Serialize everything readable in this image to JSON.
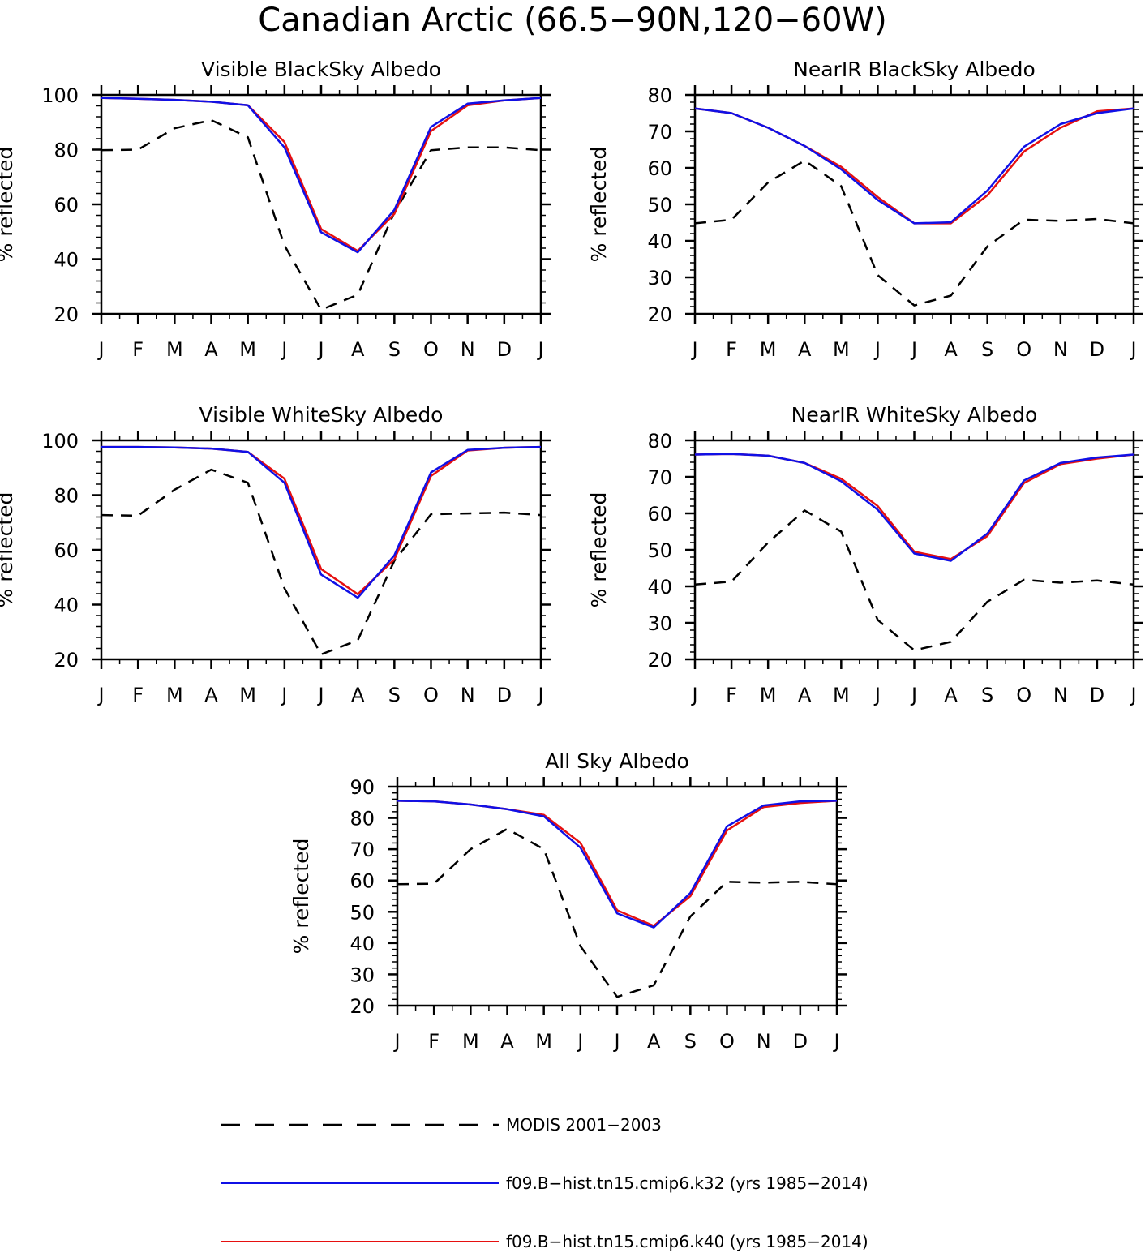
{
  "figure": {
    "title": "Canadian Arctic (66.5−90N,120−60W)"
  },
  "colors": {
    "modis": "#000000",
    "k32": "#1010e6",
    "k40": "#e61010"
  },
  "legend": [
    {
      "key": "modis",
      "label": "MODIS 2001−2003",
      "style": "dashed"
    },
    {
      "key": "k32",
      "label": "f09.B−hist.tn15.cmip6.k32 (yrs 1985−2014)",
      "style": "solid"
    },
    {
      "key": "k40",
      "label": "f09.B−hist.tn15.cmip6.k40 (yrs 1985−2014)",
      "style": "solid"
    }
  ],
  "chart_data": [
    {
      "type": "line",
      "title": "Visible BlackSky Albedo",
      "ylabel": "% reflected",
      "categories": [
        "J",
        "F",
        "M",
        "A",
        "M",
        "J",
        "J",
        "A",
        "S",
        "O",
        "N",
        "D",
        "J"
      ],
      "ylim": [
        20,
        100
      ],
      "yticks": [
        20,
        40,
        60,
        80,
        100
      ],
      "series": [
        {
          "name": "MODIS 2001−2003",
          "key": "modis",
          "values": [
            79.8,
            80,
            87.8,
            90.8,
            84.5,
            45,
            21.5,
            27,
            57,
            79.8,
            80.8,
            80.8,
            79.8
          ]
        },
        {
          "name": "f09.B−hist.tn15.cmip6.k40 (yrs 1985−2014)",
          "key": "k40",
          "values": [
            98.9,
            98.6,
            98.2,
            97.5,
            96.2,
            82.8,
            51,
            43,
            56.5,
            86.8,
            96.2,
            98,
            98.9
          ]
        },
        {
          "name": "f09.B−hist.tn15.cmip6.k32 (yrs 1985−2014)",
          "key": "k32",
          "values": [
            98.9,
            98.6,
            98.2,
            97.5,
            96.2,
            80.8,
            49.8,
            42.5,
            58,
            88.3,
            96.8,
            98,
            98.9
          ]
        }
      ]
    },
    {
      "type": "line",
      "title": "NearIR BlackSky Albedo",
      "ylabel": "% reflected",
      "categories": [
        "J",
        "F",
        "M",
        "A",
        "M",
        "J",
        "J",
        "A",
        "S",
        "O",
        "N",
        "D",
        "J"
      ],
      "ylim": [
        20,
        80
      ],
      "yticks": [
        20,
        30,
        40,
        50,
        60,
        70,
        80
      ],
      "series": [
        {
          "name": "MODIS 2001−2003",
          "key": "modis",
          "values": [
            44.8,
            45.8,
            56,
            62,
            55,
            30.6,
            22.3,
            25,
            38.5,
            45.8,
            45.5,
            46,
            44.8
          ]
        },
        {
          "name": "f09.B−hist.tn15.cmip6.k40 (yrs 1985−2014)",
          "key": "k40",
          "values": [
            76.3,
            75,
            71,
            66,
            60.3,
            52,
            44.8,
            44.8,
            52.5,
            64.5,
            71,
            75.5,
            76.3
          ]
        },
        {
          "name": "f09.B−hist.tn15.cmip6.k32 (yrs 1985−2014)",
          "key": "k32",
          "values": [
            76.3,
            75,
            71,
            66,
            59.6,
            51.2,
            44.8,
            45.1,
            53.8,
            65.8,
            72,
            75,
            76.3
          ]
        }
      ]
    },
    {
      "type": "line",
      "title": "Visible WhiteSky Albedo",
      "ylabel": "% reflected",
      "categories": [
        "J",
        "F",
        "M",
        "A",
        "M",
        "J",
        "J",
        "A",
        "S",
        "O",
        "N",
        "D",
        "J"
      ],
      "ylim": [
        20,
        100
      ],
      "yticks": [
        20,
        40,
        60,
        80,
        100
      ],
      "series": [
        {
          "name": "MODIS 2001−2003",
          "key": "modis",
          "values": [
            72.7,
            72.5,
            82,
            89.3,
            84.5,
            46,
            21.8,
            27,
            56,
            73,
            73.3,
            73.6,
            72.7
          ]
        },
        {
          "name": "f09.B−hist.tn15.cmip6.k40 (yrs 1985−2014)",
          "key": "k40",
          "values": [
            97.6,
            97.6,
            97.4,
            97,
            95.8,
            86,
            53,
            43.8,
            56.5,
            87,
            96.3,
            97.3,
            97.6
          ]
        },
        {
          "name": "f09.B−hist.tn15.cmip6.k32 (yrs 1985−2014)",
          "key": "k32",
          "values": [
            97.6,
            97.6,
            97.4,
            97,
            95.8,
            84.5,
            51,
            42.5,
            58,
            88.3,
            96.5,
            97.3,
            97.6
          ]
        }
      ]
    },
    {
      "type": "line",
      "title": "NearIR WhiteSky Albedo",
      "ylabel": "% reflected",
      "categories": [
        "J",
        "F",
        "M",
        "A",
        "M",
        "J",
        "J",
        "A",
        "S",
        "O",
        "N",
        "D",
        "J"
      ],
      "ylim": [
        20,
        80
      ],
      "yticks": [
        20,
        30,
        40,
        50,
        60,
        70,
        80
      ],
      "series": [
        {
          "name": "MODIS 2001−2003",
          "key": "modis",
          "values": [
            40.5,
            41.3,
            52,
            60.8,
            55,
            30.8,
            22.5,
            24.8,
            35.8,
            41.8,
            41,
            41.6,
            40.5
          ]
        },
        {
          "name": "f09.B−hist.tn15.cmip6.k40 (yrs 1985−2014)",
          "key": "k40",
          "values": [
            76.1,
            76.3,
            75.8,
            73.8,
            69.5,
            62,
            49.5,
            47.5,
            53.8,
            68.3,
            73.5,
            75,
            76.1
          ]
        },
        {
          "name": "f09.B−hist.tn15.cmip6.k32 (yrs 1985−2014)",
          "key": "k32",
          "values": [
            76.1,
            76.3,
            75.8,
            73.8,
            68.8,
            61,
            49,
            47,
            54.5,
            69,
            73.8,
            75.3,
            76.1
          ]
        }
      ]
    },
    {
      "type": "line",
      "title": "All Sky Albedo",
      "ylabel": "% reflected",
      "categories": [
        "J",
        "F",
        "M",
        "A",
        "M",
        "J",
        "J",
        "A",
        "S",
        "O",
        "N",
        "D",
        "J"
      ],
      "ylim": [
        20,
        90
      ],
      "yticks": [
        20,
        30,
        40,
        50,
        60,
        70,
        80,
        90
      ],
      "series": [
        {
          "name": "MODIS 2001−2003",
          "key": "modis",
          "values": [
            58.8,
            59,
            70,
            76.5,
            70,
            39,
            22.8,
            26.5,
            48.5,
            59.6,
            59.3,
            59.6,
            58.8
          ]
        },
        {
          "name": "f09.B−hist.tn15.cmip6.k40 (yrs 1985−2014)",
          "key": "k40",
          "values": [
            85.5,
            85.3,
            84.3,
            82.8,
            81,
            72,
            50.5,
            45.5,
            55,
            76,
            83.5,
            84.8,
            85.5
          ]
        },
        {
          "name": "f09.B−hist.tn15.cmip6.k32 (yrs 1985−2014)",
          "key": "k32",
          "values": [
            85.5,
            85.3,
            84.3,
            82.8,
            80.5,
            70.5,
            49.5,
            45,
            56,
            77.3,
            84,
            85.3,
            85.5
          ]
        }
      ]
    }
  ]
}
